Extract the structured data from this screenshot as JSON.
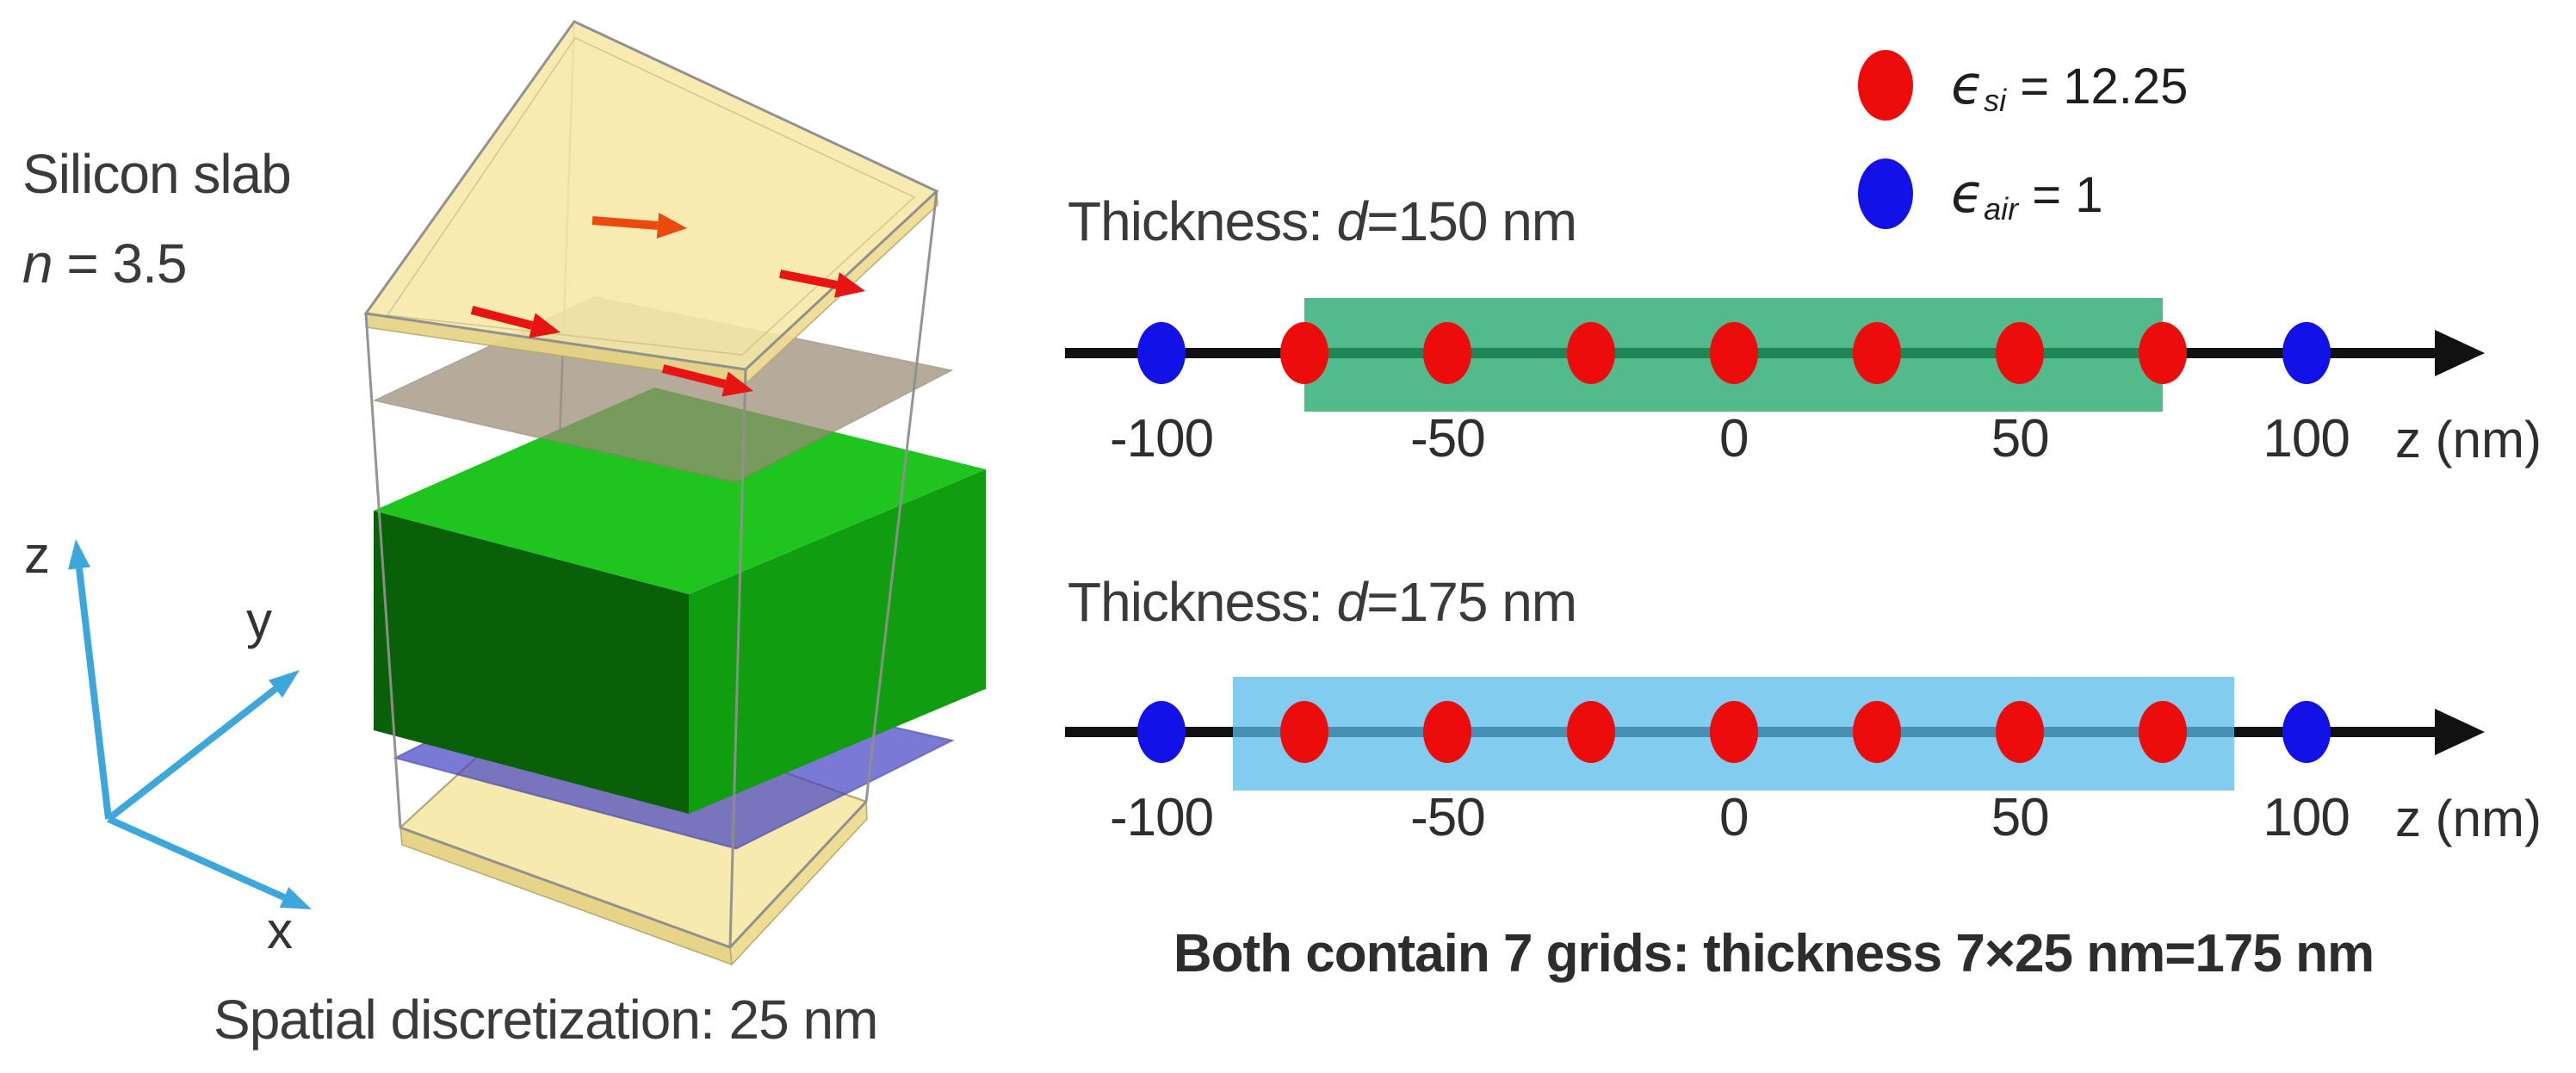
{
  "left_panel": {
    "title": "Silicon slab",
    "index_symbol": "n",
    "index_value": " = 3.5",
    "caption": "Spatial discretization: 25 nm",
    "axis_labels": {
      "x": "x",
      "y": "y",
      "z": "z"
    }
  },
  "legend": {
    "items": [
      {
        "name": "silicon",
        "symbol": "ϵ",
        "subscript": "si",
        "value": " = 12.25",
        "color": "#ec0c0c"
      },
      {
        "name": "air",
        "symbol": "ϵ",
        "subscript": "air",
        "value": " = 1",
        "color": "#1212e8"
      }
    ]
  },
  "chart_data": {
    "type": "scatter",
    "description": "1D finite-difference grids along z for a silicon slab; red points are silicon grid cells, blue points are air; shaded band marks the slab extent",
    "z_unit": "nm",
    "grid_spacing_nm": 25,
    "grids_in_slab": 7,
    "number_lines": [
      {
        "title_prefix": "Thickness: ",
        "title_symbol": "d",
        "title_value": "=150 nm",
        "slab_region": {
          "z_start": -75,
          "z_end": 75,
          "color": "rgba(35,167,106,0.78)"
        },
        "points": [
          {
            "z": -100,
            "material": "air"
          },
          {
            "z": -75,
            "material": "si"
          },
          {
            "z": -50,
            "material": "si"
          },
          {
            "z": -25,
            "material": "si"
          },
          {
            "z": 0,
            "material": "si"
          },
          {
            "z": 25,
            "material": "si"
          },
          {
            "z": 50,
            "material": "si"
          },
          {
            "z": 75,
            "material": "si"
          },
          {
            "z": 100,
            "material": "air"
          }
        ],
        "ticks": [
          {
            "z": -100,
            "label": "-100"
          },
          {
            "z": -50,
            "label": "-50"
          },
          {
            "z": 0,
            "label": "0"
          },
          {
            "z": 50,
            "label": "50"
          },
          {
            "z": 100,
            "label": "100"
          }
        ],
        "axis_label": "z (nm)"
      },
      {
        "title_prefix": "Thickness: ",
        "title_symbol": "d",
        "title_value": "=175 nm",
        "slab_region": {
          "z_start": -87.5,
          "z_end": 87.5,
          "color": "rgba(88,187,235,0.75)"
        },
        "points": [
          {
            "z": -100,
            "material": "air"
          },
          {
            "z": -75,
            "material": "si"
          },
          {
            "z": -50,
            "material": "si"
          },
          {
            "z": -25,
            "material": "si"
          },
          {
            "z": 0,
            "material": "si"
          },
          {
            "z": 25,
            "material": "si"
          },
          {
            "z": 50,
            "material": "si"
          },
          {
            "z": 75,
            "material": "si"
          },
          {
            "z": 100,
            "material": "air"
          }
        ],
        "ticks": [
          {
            "z": -100,
            "label": "-100"
          },
          {
            "z": -50,
            "label": "-50"
          },
          {
            "z": 0,
            "label": "0"
          },
          {
            "z": 50,
            "label": "50"
          },
          {
            "z": 100,
            "label": "100"
          }
        ],
        "axis_label": "z (nm)"
      }
    ]
  },
  "conclusion": "Both contain 7 grids: thickness 7×25 nm=175 nm",
  "colors": {
    "si_dot": "#ec0c0c",
    "air_dot": "#1212e8",
    "axis_black": "#111111",
    "coord_axes": "#3da7dc",
    "slab_green_top": "#1fc41f",
    "region_green": "#23a76a",
    "region_blue": "#58bbeb",
    "plate_yellow": "#f6e9a8"
  }
}
